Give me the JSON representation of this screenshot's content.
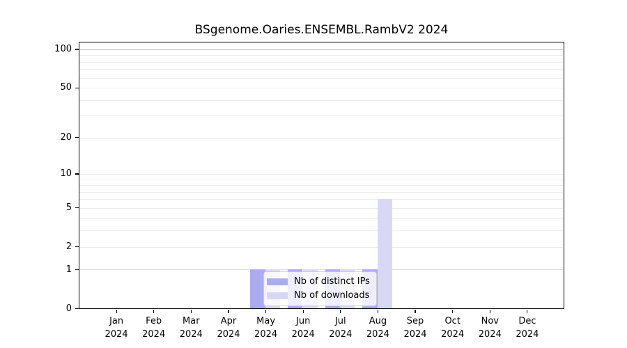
{
  "chart_data": {
    "type": "bar",
    "title": "BSgenome.Oaries.ENSEMBL.RambV2 2024",
    "categories": [
      "Jan",
      "Feb",
      "Mar",
      "Apr",
      "May",
      "Jun",
      "Jul",
      "Aug",
      "Sep",
      "Oct",
      "Nov",
      "Dec"
    ],
    "x_sublabel": "2024",
    "series": [
      {
        "name": "Nb of distinct IPs",
        "color": "#ababef",
        "values": [
          0,
          0,
          0,
          0,
          1,
          1,
          1,
          1,
          0,
          0,
          0,
          0
        ]
      },
      {
        "name": "Nb of downloads",
        "color": "#d8d8f6",
        "values": [
          0,
          0,
          0,
          0,
          1,
          1,
          1,
          6,
          0,
          0,
          0,
          0
        ]
      }
    ],
    "yscale": "log1p",
    "ytick_labels": [
      0,
      1,
      2,
      5,
      10,
      20,
      50,
      100
    ],
    "ylim": [
      0,
      115
    ],
    "grid": true,
    "legend_position": "inside-bottom-center",
    "colors": {
      "grid_minor": "#ededed",
      "grid_value_1": "#d9d9d9",
      "grid_value_100": "#c3c3c3",
      "spine": "#000000",
      "legend_border": "#cccccc",
      "text": "#000000"
    }
  }
}
